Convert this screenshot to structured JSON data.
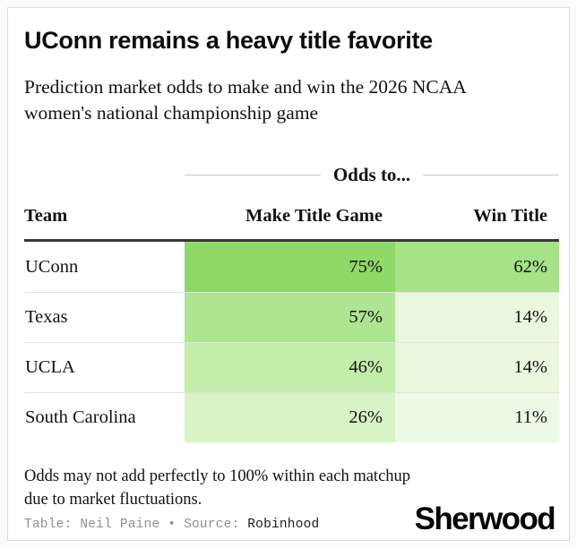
{
  "header": {
    "title": "UConn remains a heavy title favorite",
    "subtitle": "Prediction market odds to make and win the 2026 NCAA women's national championship game"
  },
  "chart_data": {
    "type": "table",
    "title": "UConn remains a heavy title favorite",
    "subtitle": "Prediction market odds to make and win the 2026 NCAA women's national championship game",
    "column_group_label": "Odds to...",
    "columns": [
      "Team",
      "Make Title Game",
      "Win Title"
    ],
    "value_unit": "%",
    "heatmap_palette": {
      "low": "#f2fbec",
      "high": "#6bcb41"
    },
    "rows": [
      {
        "team": "UConn",
        "make_pct": 75,
        "win_pct": 62,
        "make_label": "75%",
        "win_label": "62%",
        "make_color": "#8ed969",
        "win_color": "#a6e288"
      },
      {
        "team": "Texas",
        "make_pct": 57,
        "win_pct": 14,
        "make_label": "57%",
        "win_label": "14%",
        "make_color": "#aee590",
        "win_color": "#e9f7de"
      },
      {
        "team": "UCLA",
        "make_pct": 46,
        "win_pct": 14,
        "make_label": "46%",
        "win_label": "14%",
        "make_color": "#c3edaa",
        "win_color": "#e9f7de"
      },
      {
        "team": "South Carolina",
        "make_pct": 26,
        "win_pct": 11,
        "make_label": "26%",
        "win_label": "11%",
        "make_color": "#d8f3c5",
        "win_color": "#ecf9e4"
      }
    ]
  },
  "footer": {
    "note": "Odds may not add perfectly to 100% within each matchup due to market fluctuations.",
    "credit_table_label": "Table:",
    "credit_author": "Neil Paine",
    "credit_separator": "•",
    "credit_source_label": "Source:",
    "credit_source": "Robinhood",
    "logo_text": "Sherwood"
  }
}
